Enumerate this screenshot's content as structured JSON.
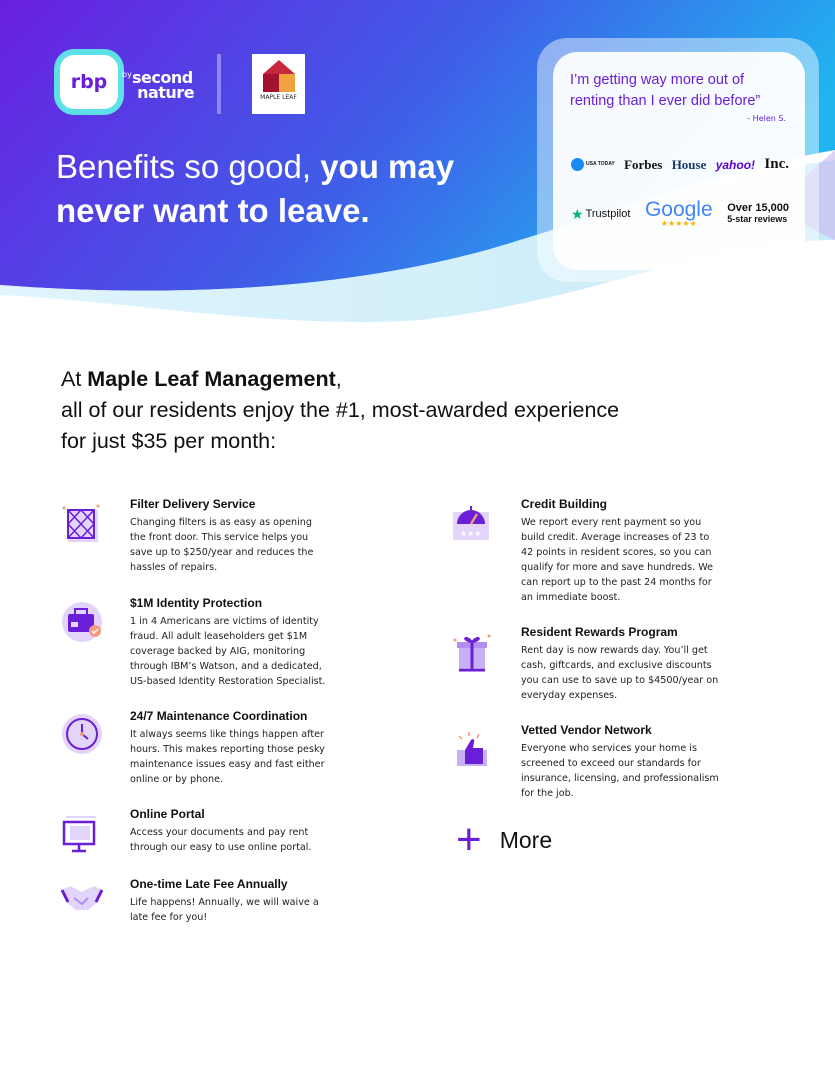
{
  "header": {
    "rbp_logo": "rbp",
    "by_label": "by",
    "second_nature_logo": "second nature",
    "maple_leaf_logo": "MAPLE LEAF PROPERTY MANAGEMENT & REAL ESTATE",
    "headline_regular": "Benefits so good, ",
    "headline_bold_1": "you may",
    "headline_bold_2": "never want to leave.",
    "gradient_start": "#6a1fe0",
    "gradient_end": "#2a9cf0"
  },
  "testimonial": {
    "quote": "I’m getting way more out of renting than I ever did before”",
    "author": "- Helen S.",
    "press": [
      "USA TODAY",
      "Forbes",
      "House",
      "yahoo!",
      "Inc."
    ],
    "trustpilot": "Trustpilot",
    "google": "Google",
    "google_stars": "★★★★★",
    "reviews_count": "Over 15,000",
    "reviews_label": "5-star reviews"
  },
  "intro": {
    "prefix": "At ",
    "company": "Maple Leaf Management",
    "line1_suffix": ",",
    "line2": "all of our residents enjoy the #1, most-awarded experience",
    "line3": "for just $35 per month:"
  },
  "features_left": [
    {
      "title": "Filter Delivery Service",
      "desc": "Changing filters is as easy as opening the front door. This service helps you save up to $250/year and reduces the hassles of repairs.",
      "icon": "filter-icon"
    },
    {
      "title": "$1M Identity Protection",
      "desc": "1 in 4 Americans are victims of identity fraud. All adult leaseholders get $1M coverage backed by AIG, monitoring through IBM’s Watson, and a dedicated, US-based Identity Restoration Specialist.",
      "icon": "id-badge-icon"
    },
    {
      "title": "24/7 Maintenance Coordination",
      "desc": "It always seems like things happen after hours. This makes reporting those pesky maintenance issues easy and fast either online or by phone.",
      "icon": "clock-icon"
    },
    {
      "title": "Online Portal",
      "desc": "Access your documents and pay rent through our easy to use online portal.",
      "icon": "monitor-icon"
    },
    {
      "title": "One-time Late Fee Annually",
      "desc": "Life happens! Annually, we will waive a late fee for you!",
      "icon": "handshake-icon"
    }
  ],
  "features_right": [
    {
      "title": "Credit Building",
      "desc": "We report every rent payment so you build credit. Average increases of 23 to 42 points in resident scores, so you can qualify for more and save hundreds. We can report up to the past 24 months for an immediate boost.",
      "icon": "credit-gauge-icon"
    },
    {
      "title": "Resident Rewards Program",
      "desc": "Rent day is now rewards day. You’ll get cash, giftcards, and exclusive discounts you can use to save up to $4500/year on everyday expenses.",
      "icon": "gift-icon"
    },
    {
      "title": "Vetted Vendor Network",
      "desc": "Everyone who services your home is screened to exceed our standards for insurance, licensing, and professionalism for the job.",
      "icon": "thumbs-up-icon"
    }
  ],
  "more": {
    "icon": "plus-icon",
    "symbol": "+",
    "label": "More"
  },
  "accent_color": "#6a1fd6"
}
